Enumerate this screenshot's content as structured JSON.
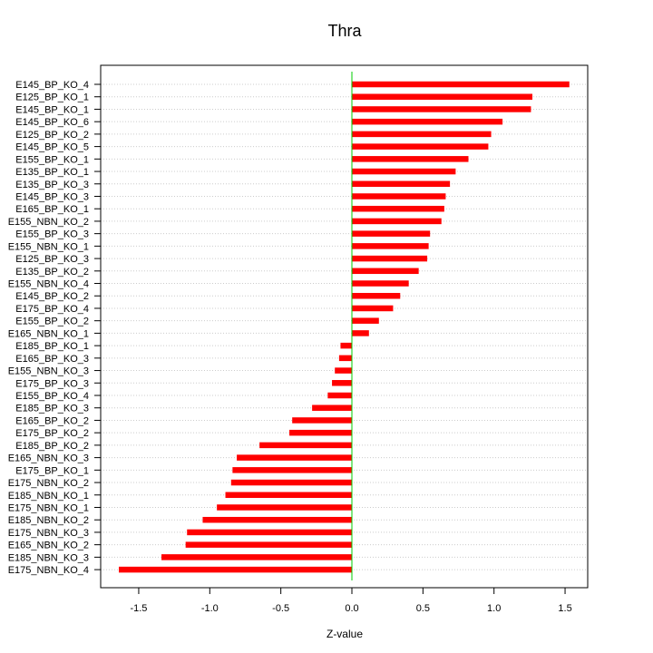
{
  "chart_data": {
    "type": "bar",
    "orientation": "horizontal",
    "title": "Thra",
    "xlabel": "Z-value",
    "ylabel": "",
    "xlim": [
      -1.7,
      1.6
    ],
    "xticks": [
      "-1.5",
      "-1.0",
      "-0.5",
      "0.0",
      "0.5",
      "1.0",
      "1.5"
    ],
    "xtick_values": [
      -1.5,
      -1.0,
      -0.5,
      0.0,
      0.5,
      1.0,
      1.5
    ],
    "grid": "horizontal dotted",
    "bar_color": "#ff0000",
    "zero_line_color": "#00cc00",
    "categories": [
      "E145_BP_KO_4",
      "E125_BP_KO_1",
      "E145_BP_KO_1",
      "E145_BP_KO_6",
      "E125_BP_KO_2",
      "E145_BP_KO_5",
      "E155_BP_KO_1",
      "E135_BP_KO_1",
      "E135_BP_KO_3",
      "E145_BP_KO_3",
      "E165_BP_KO_1",
      "E155_NBN_KO_2",
      "E155_BP_KO_3",
      "E155_NBN_KO_1",
      "E125_BP_KO_3",
      "E135_BP_KO_2",
      "E155_NBN_KO_4",
      "E145_BP_KO_2",
      "E175_BP_KO_4",
      "E155_BP_KO_2",
      "E165_NBN_KO_1",
      "E185_BP_KO_1",
      "E165_BP_KO_3",
      "E155_NBN_KO_3",
      "E175_BP_KO_3",
      "E155_BP_KO_4",
      "E185_BP_KO_3",
      "E165_BP_KO_2",
      "E175_BP_KO_2",
      "E185_BP_KO_2",
      "E165_NBN_KO_3",
      "E175_BP_KO_1",
      "E175_NBN_KO_2",
      "E185_NBN_KO_1",
      "E175_NBN_KO_1",
      "E185_NBN_KO_2",
      "E175_NBN_KO_3",
      "E165_NBN_KO_2",
      "E185_NBN_KO_3",
      "E175_NBN_KO_4"
    ],
    "values": [
      1.53,
      1.27,
      1.26,
      1.06,
      0.98,
      0.96,
      0.82,
      0.73,
      0.69,
      0.66,
      0.65,
      0.63,
      0.55,
      0.54,
      0.53,
      0.47,
      0.4,
      0.34,
      0.29,
      0.19,
      0.12,
      -0.08,
      -0.09,
      -0.12,
      -0.14,
      -0.17,
      -0.28,
      -0.42,
      -0.44,
      -0.65,
      -0.81,
      -0.84,
      -0.85,
      -0.89,
      -0.95,
      -1.05,
      -1.16,
      -1.17,
      -1.34,
      -1.64
    ]
  }
}
